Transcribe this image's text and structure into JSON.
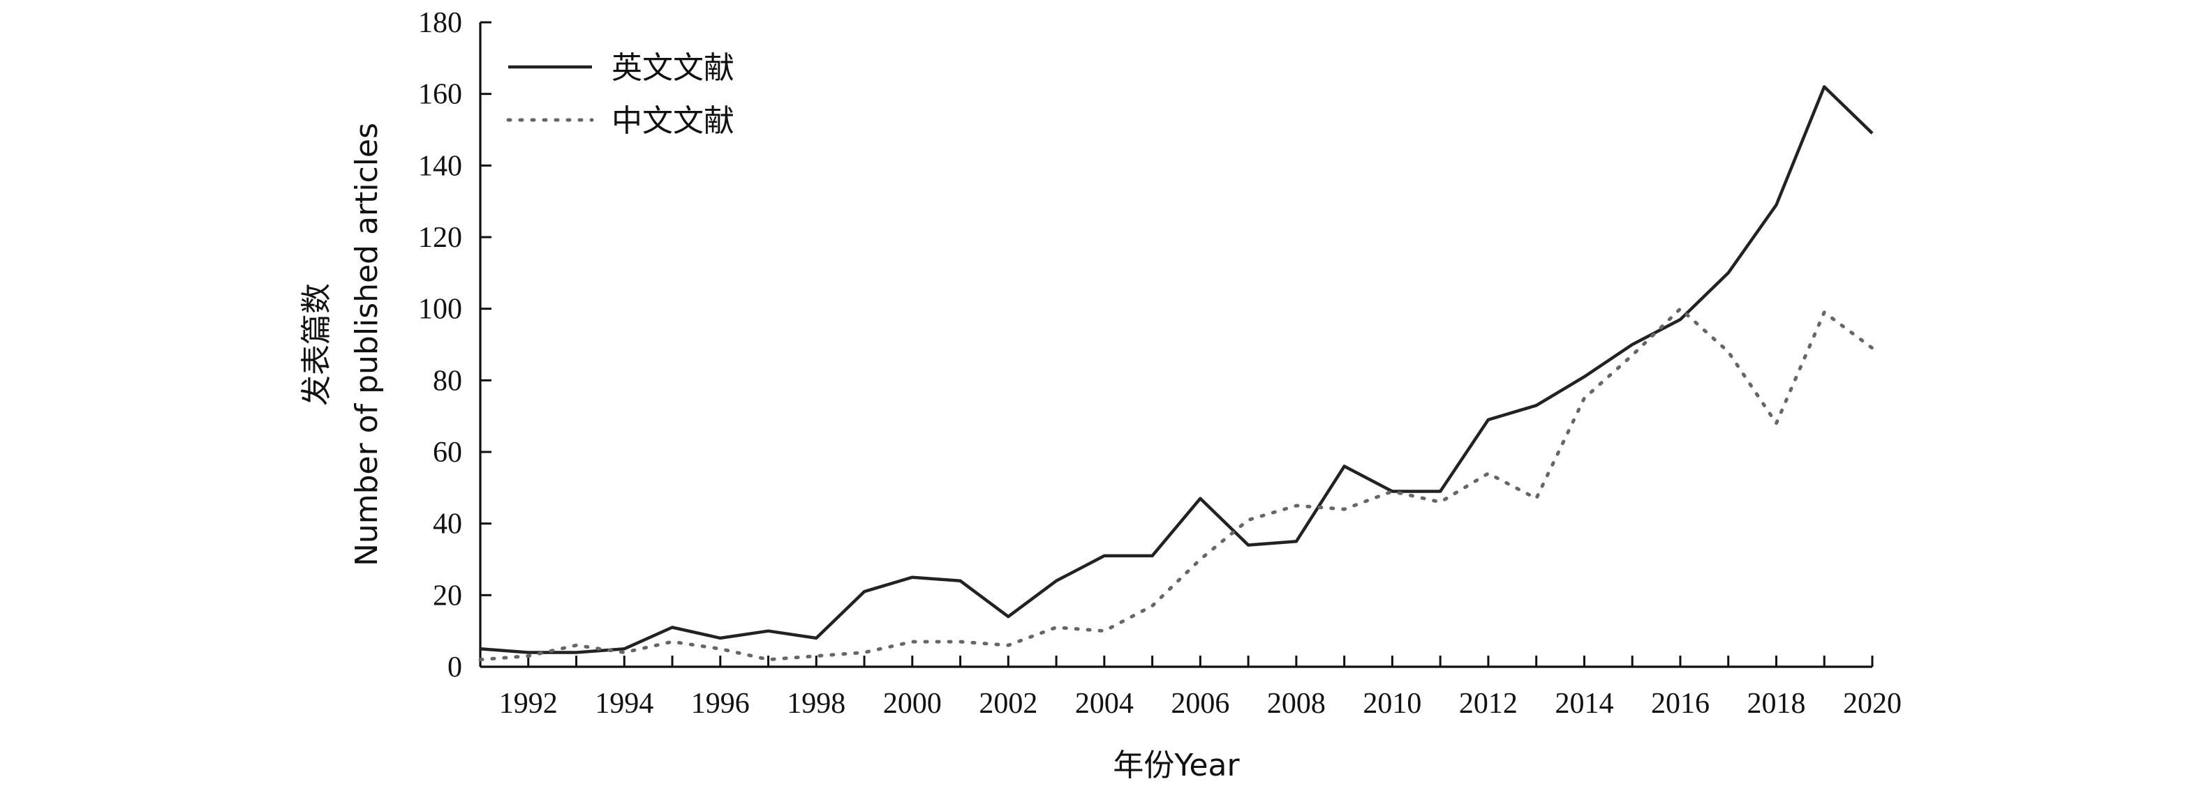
{
  "chart_data": {
    "type": "line",
    "xlabel": "年份Year",
    "ylabel_lines": [
      "发表篇数",
      "Number of published articles"
    ],
    "xlim": [
      1991,
      2020
    ],
    "ylim": [
      0,
      180
    ],
    "x_ticks": [
      1992,
      1994,
      1996,
      1998,
      2000,
      2002,
      2004,
      2006,
      2008,
      2010,
      2012,
      2014,
      2016,
      2018,
      2020
    ],
    "y_ticks": [
      0,
      20,
      40,
      60,
      80,
      100,
      120,
      140,
      160,
      180
    ],
    "grid": false,
    "legend_position": "top-left",
    "x": [
      1991,
      1992,
      1993,
      1994,
      1995,
      1996,
      1997,
      1998,
      1999,
      2000,
      2001,
      2002,
      2003,
      2004,
      2005,
      2006,
      2007,
      2008,
      2009,
      2010,
      2011,
      2012,
      2013,
      2014,
      2015,
      2016,
      2017,
      2018,
      2019,
      2020
    ],
    "series": [
      {
        "name": "英文文献",
        "style": "solid",
        "color": "#222222",
        "values": [
          5,
          4,
          4,
          5,
          11,
          8,
          10,
          8,
          21,
          25,
          24,
          14,
          24,
          31,
          31,
          47,
          34,
          35,
          56,
          49,
          49,
          69,
          73,
          81,
          90,
          97,
          110,
          129,
          162,
          149
        ]
      },
      {
        "name": "中文文献",
        "style": "dotted",
        "color": "#666666",
        "values": [
          2,
          3,
          6,
          4,
          7,
          5,
          2,
          3,
          4,
          7,
          7,
          6,
          11,
          10,
          17,
          30,
          41,
          45,
          44,
          49,
          46,
          54,
          47,
          75,
          87,
          100,
          88,
          68,
          99,
          89
        ]
      }
    ]
  }
}
